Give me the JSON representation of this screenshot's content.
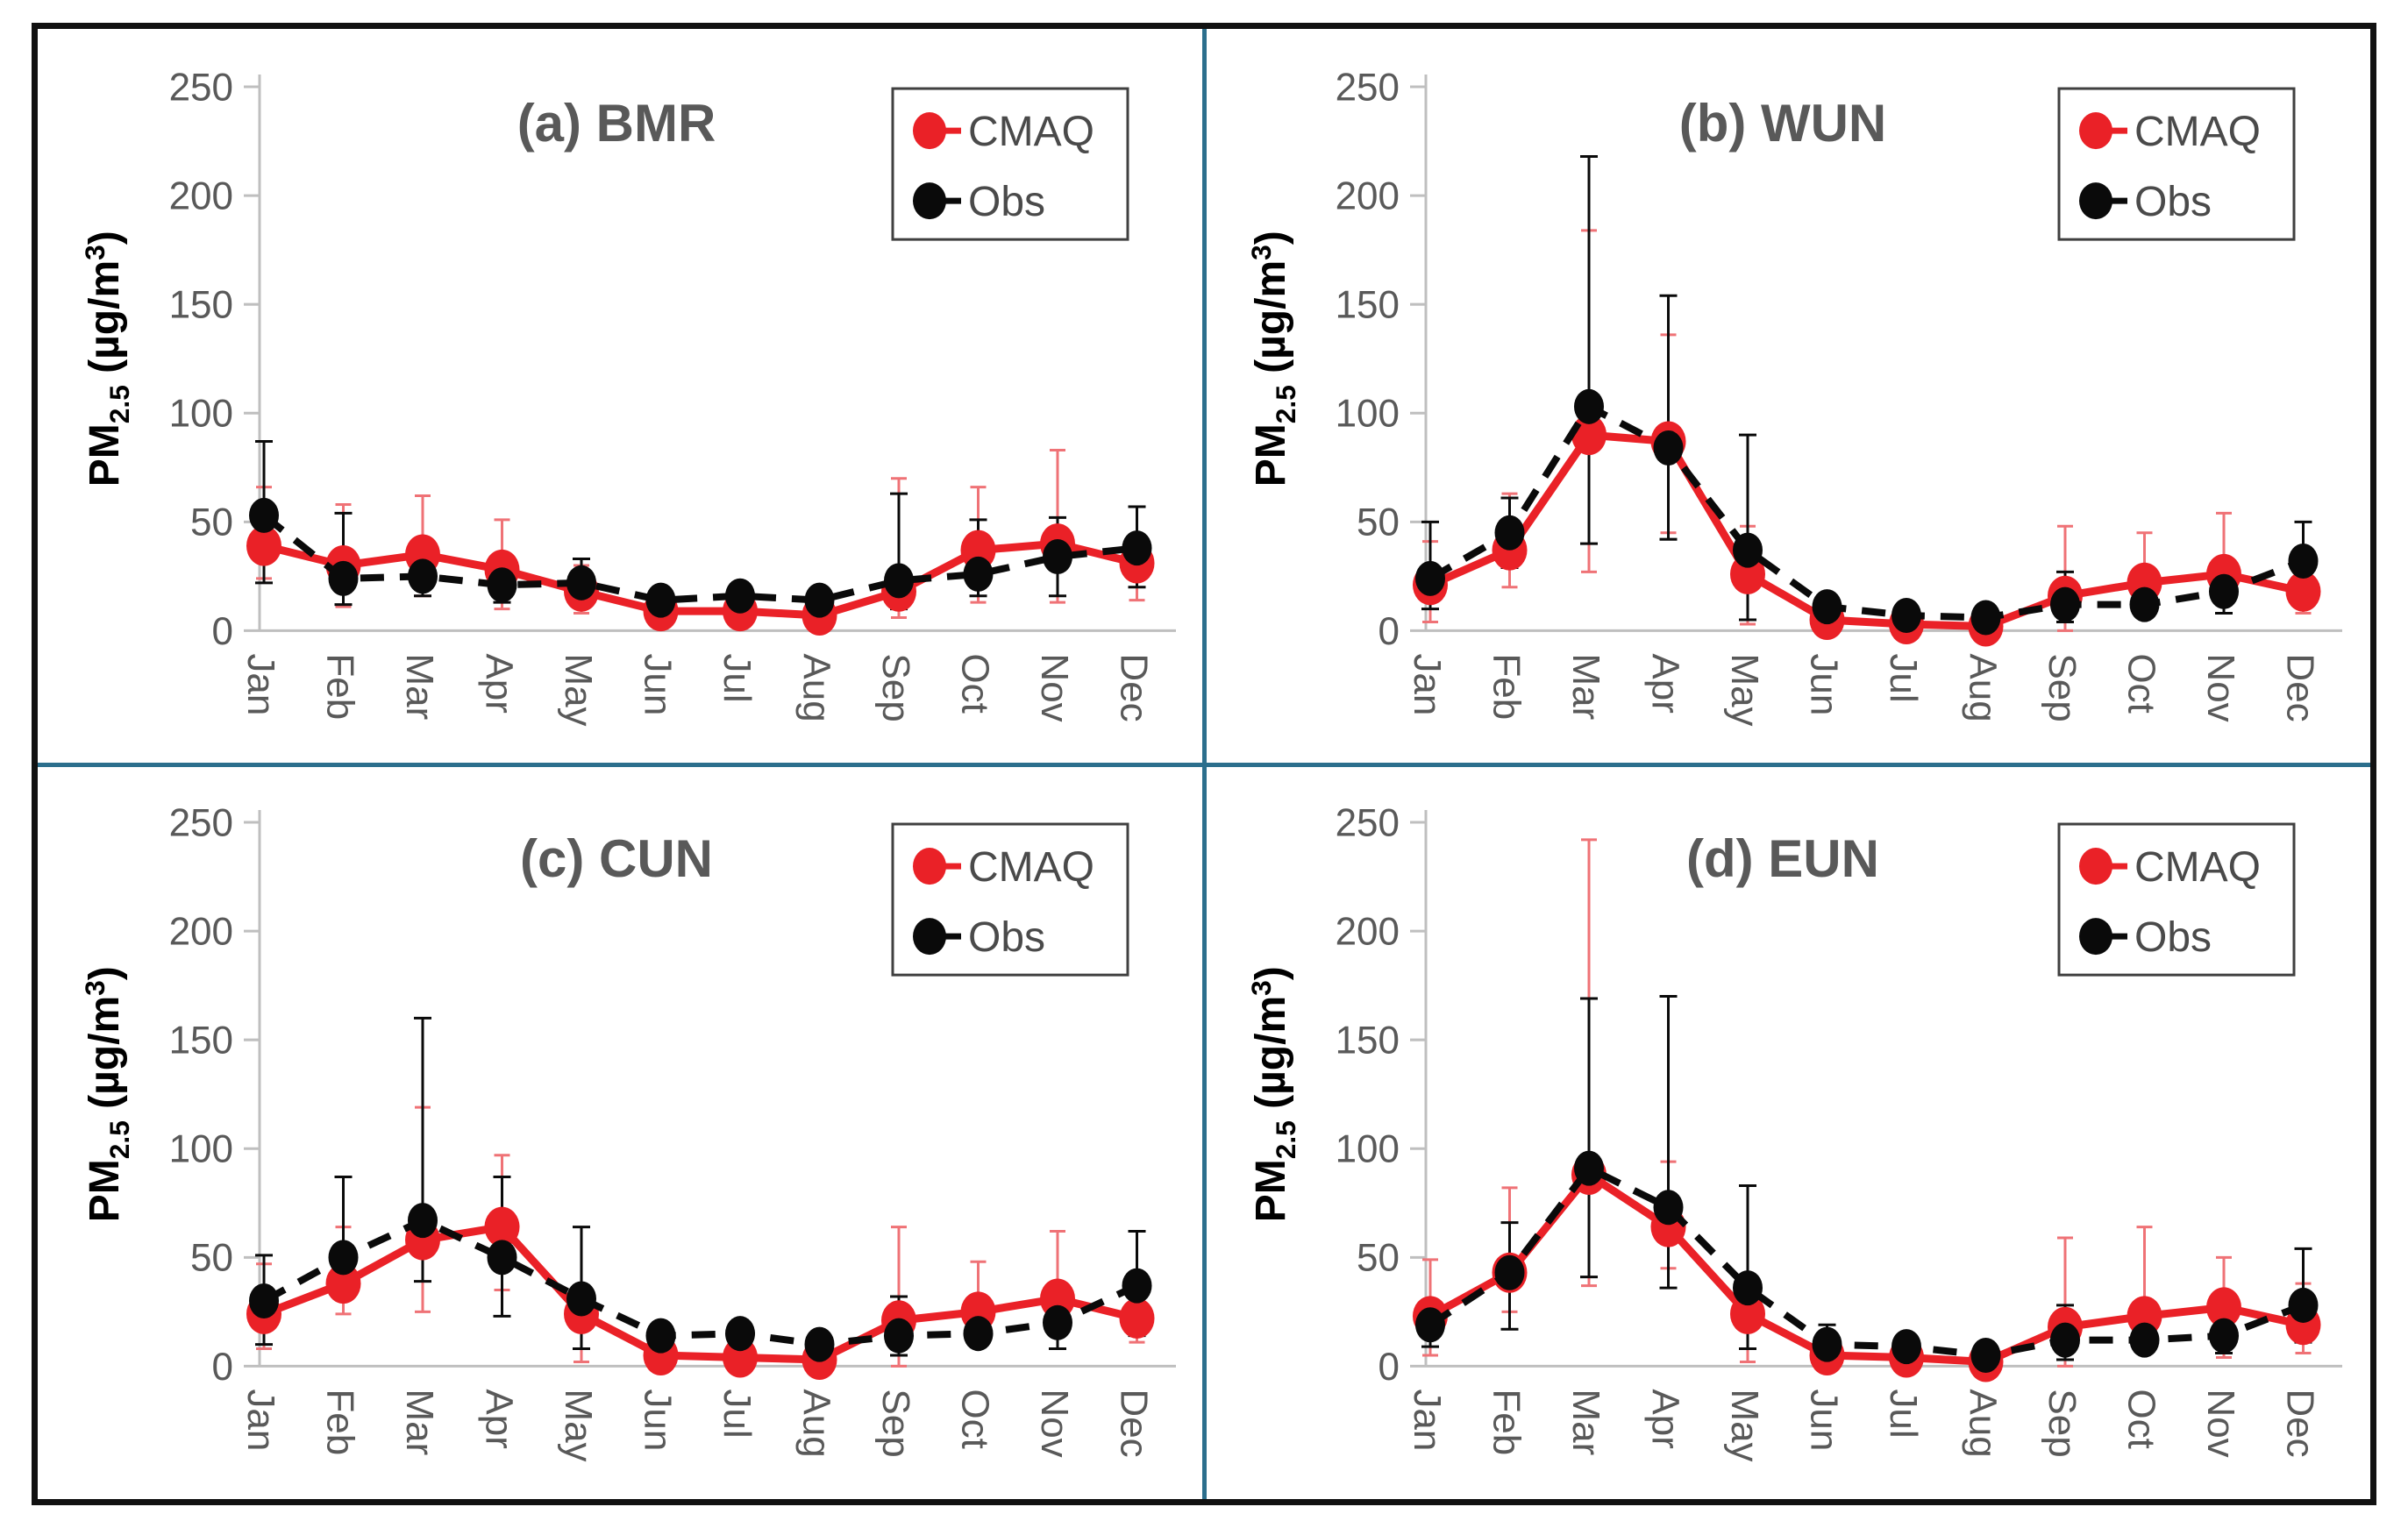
{
  "figure": {
    "background": "#ffffff",
    "border_color": "#111111",
    "divider_color": "#2c6f8d",
    "text_gray": "#595959",
    "axis_line_color": "#bfbfbf",
    "cmaq_red": "#ea2127",
    "cmaq_err_red": "#ef7276",
    "obs_black": "#0a0a0a",
    "legend_border": "#404040",
    "ylabel": {
      "pm": "PM",
      "sub": "2.5",
      "mid": " (µg/m",
      "sup": "3",
      "close": ")"
    }
  },
  "chart_data": [
    {
      "id": "a",
      "type": "line",
      "title": "(a) BMR",
      "xlabel": "",
      "ylabel": "PM2.5 (µg/m3)",
      "ylim": [
        0,
        250
      ],
      "yticks": [
        0,
        50,
        100,
        150,
        200,
        250
      ],
      "grid": false,
      "legend_position": "top-right",
      "categories": [
        "Jan",
        "Feb",
        "Mar",
        "Apr",
        "May",
        "Jun",
        "Jul",
        "Aug",
        "Sep",
        "Oct",
        "Nov",
        "Dec"
      ],
      "series": [
        {
          "name": "CMAQ",
          "style": "solid",
          "values": [
            39,
            30,
            35,
            28,
            18,
            9,
            9,
            7,
            18,
            37,
            40,
            31
          ],
          "whisker_low": [
            24,
            11,
            16,
            10,
            8,
            5,
            5,
            4,
            6,
            13,
            13,
            14
          ],
          "whisker_high": [
            66,
            58,
            62,
            51,
            30,
            14,
            14,
            11,
            70,
            66,
            83,
            44
          ]
        },
        {
          "name": "Obs",
          "style": "dashed",
          "values": [
            53,
            24,
            25,
            21,
            22,
            14,
            16,
            14,
            23,
            26,
            34,
            38
          ],
          "whisker_low": [
            22,
            12,
            16,
            13,
            12,
            9,
            10,
            9,
            10,
            16,
            16,
            20
          ],
          "whisker_high": [
            87,
            54,
            32,
            32,
            33,
            20,
            22,
            18,
            63,
            51,
            52,
            57
          ]
        }
      ]
    },
    {
      "id": "b",
      "type": "line",
      "title": "(b) WUN",
      "xlabel": "",
      "ylabel": "PM2.5 (µg/m3)",
      "ylim": [
        0,
        250
      ],
      "yticks": [
        0,
        50,
        100,
        150,
        200,
        250
      ],
      "grid": false,
      "legend_position": "top-right",
      "categories": [
        "Jan",
        "Feb",
        "Mar",
        "Apr",
        "May",
        "Jun",
        "Jul",
        "Aug",
        "Sep",
        "Oct",
        "Nov",
        "Dec"
      ],
      "series": [
        {
          "name": "CMAQ",
          "style": "solid",
          "values": [
            21,
            37,
            90,
            87,
            26,
            5,
            3,
            2,
            16,
            22,
            26,
            18
          ],
          "whisker_low": [
            4,
            20,
            27,
            45,
            3,
            2,
            1,
            0,
            0,
            8,
            8,
            8
          ],
          "whisker_high": [
            41,
            63,
            184,
            136,
            48,
            8,
            6,
            5,
            48,
            45,
            54,
            30
          ]
        },
        {
          "name": "Obs",
          "style": "dashed",
          "values": [
            24,
            45,
            103,
            84,
            37,
            11,
            7,
            6,
            12,
            12,
            18,
            32
          ],
          "whisker_low": [
            10,
            29,
            40,
            42,
            5,
            7,
            4,
            3,
            4,
            8,
            8,
            11
          ],
          "whisker_high": [
            50,
            61,
            218,
            154,
            90,
            16,
            11,
            10,
            27,
            18,
            25,
            50
          ]
        }
      ]
    },
    {
      "id": "c",
      "type": "line",
      "title": "(c) CUN",
      "xlabel": "",
      "ylabel": "PM2.5 (µg/m3)",
      "ylim": [
        0,
        250
      ],
      "yticks": [
        0,
        50,
        100,
        150,
        200,
        250
      ],
      "grid": false,
      "legend_position": "top-right",
      "categories": [
        "Jan",
        "Feb",
        "Mar",
        "Apr",
        "May",
        "Jun",
        "Jul",
        "Aug",
        "Sep",
        "Oct",
        "Nov",
        "Dec"
      ],
      "series": [
        {
          "name": "CMAQ",
          "style": "solid",
          "values": [
            24,
            38,
            58,
            64,
            24,
            5,
            4,
            3,
            21,
            25,
            31,
            22
          ],
          "whisker_low": [
            8,
            24,
            25,
            35,
            2,
            2,
            1,
            1,
            0,
            9,
            8,
            11
          ],
          "whisker_high": [
            47,
            64,
            119,
            97,
            36,
            9,
            8,
            6,
            64,
            48,
            62,
            32
          ]
        },
        {
          "name": "Obs",
          "style": "dashed",
          "values": [
            30,
            50,
            67,
            50,
            31,
            14,
            15,
            10,
            14,
            15,
            20,
            37
          ],
          "whisker_low": [
            10,
            31,
            39,
            23,
            8,
            9,
            10,
            6,
            5,
            10,
            8,
            14
          ],
          "whisker_high": [
            51,
            87,
            160,
            87,
            64,
            20,
            21,
            15,
            32,
            24,
            24,
            62
          ]
        }
      ]
    },
    {
      "id": "d",
      "type": "line",
      "title": "(d) EUN",
      "xlabel": "",
      "ylabel": "PM2.5 (µg/m3)",
      "ylim": [
        0,
        250
      ],
      "yticks": [
        0,
        50,
        100,
        150,
        200,
        250
      ],
      "grid": false,
      "legend_position": "top-right",
      "categories": [
        "Jan",
        "Feb",
        "Mar",
        "Apr",
        "May",
        "Jun",
        "Jul",
        "Aug",
        "Sep",
        "Oct",
        "Nov",
        "Dec"
      ],
      "series": [
        {
          "name": "CMAQ",
          "style": "solid",
          "values": [
            23,
            43,
            88,
            64,
            24,
            5,
            4,
            2,
            18,
            23,
            27,
            19
          ],
          "whisker_low": [
            5,
            25,
            37,
            45,
            2,
            2,
            1,
            1,
            0,
            6,
            4,
            6
          ],
          "whisker_high": [
            49,
            82,
            242,
            94,
            40,
            8,
            6,
            5,
            59,
            64,
            50,
            38
          ]
        },
        {
          "name": "Obs",
          "style": "dashed",
          "values": [
            19,
            43,
            91,
            73,
            36,
            10,
            9,
            5,
            12,
            12,
            14,
            28
          ],
          "whisker_low": [
            9,
            17,
            41,
            36,
            8,
            5,
            4,
            3,
            3,
            8,
            6,
            11
          ],
          "whisker_high": [
            30,
            66,
            169,
            170,
            83,
            19,
            14,
            10,
            28,
            20,
            25,
            54
          ]
        }
      ]
    }
  ]
}
